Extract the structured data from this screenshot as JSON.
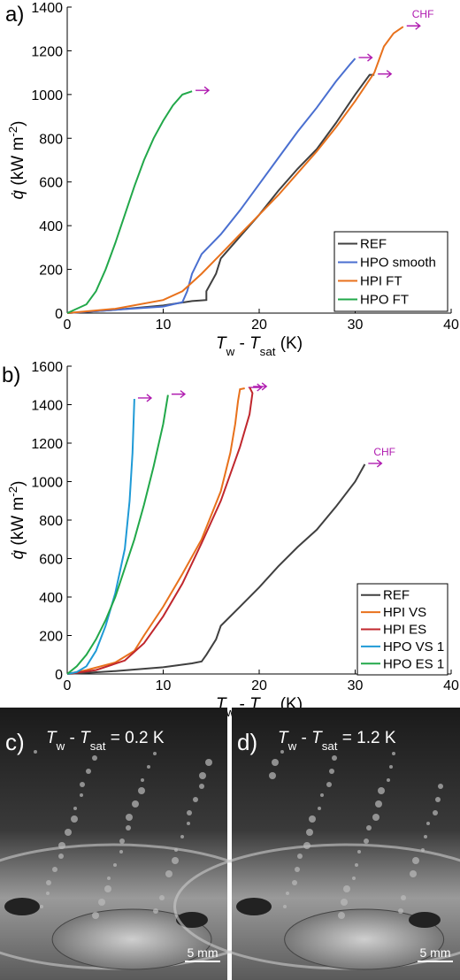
{
  "chart_data": [
    {
      "type": "line",
      "panel": "a)",
      "annotation": "CHF",
      "xlabel": [
        "T",
        "w",
        " - ",
        "T",
        "sat",
        " (K)"
      ],
      "ylabel": [
        "q̇",
        " (kW m",
        "-2",
        ")"
      ],
      "xlim": [
        0,
        40
      ],
      "xticks": [
        0,
        10,
        20,
        30,
        40
      ],
      "ylim": [
        0,
        1400
      ],
      "yticks": [
        0,
        200,
        400,
        600,
        800,
        1000,
        1200,
        1400
      ],
      "grid": false,
      "legend": "lower right",
      "series": [
        {
          "name": "REF",
          "color": "#404040",
          "x": [
            0,
            5,
            10,
            13,
            14.5,
            14.5,
            15.5,
            16,
            18,
            20,
            22,
            24,
            26,
            28,
            30,
            31.5,
            32
          ],
          "values": [
            0,
            15,
            35,
            55,
            60,
            100,
            180,
            250,
            350,
            450,
            560,
            660,
            750,
            870,
            1000,
            1090,
            1090
          ]
        },
        {
          "name": "HPO smooth",
          "color": "#4a6fd0",
          "x": [
            0,
            5,
            10,
            12,
            12.5,
            13,
            14,
            16,
            18,
            20,
            22,
            24,
            26,
            28,
            29.5,
            30
          ],
          "values": [
            0,
            15,
            30,
            50,
            100,
            180,
            270,
            360,
            470,
            590,
            710,
            830,
            940,
            1060,
            1140,
            1165
          ]
        },
        {
          "name": "HPI FT",
          "color": "#e8711c",
          "x": [
            0,
            5,
            10,
            12,
            14,
            16,
            18,
            20,
            22,
            24,
            26,
            28,
            30,
            32,
            33,
            34,
            35
          ],
          "values": [
            0,
            20,
            60,
            100,
            180,
            270,
            360,
            450,
            540,
            640,
            740,
            850,
            970,
            1100,
            1220,
            1280,
            1310
          ]
        },
        {
          "name": "HPO FT",
          "color": "#22a84a",
          "x": [
            0,
            2,
            3,
            4,
            5,
            6,
            7,
            8,
            9,
            10,
            11,
            12,
            13
          ],
          "values": [
            0,
            40,
            100,
            200,
            320,
            450,
            580,
            700,
            800,
            880,
            950,
            1000,
            1015
          ]
        }
      ]
    },
    {
      "type": "line",
      "panel": "b)",
      "annotation": "CHF",
      "xlabel": [
        "T",
        "w",
        " - ",
        "T",
        "sat",
        " (K)"
      ],
      "ylabel": [
        "q̇",
        " (kW m",
        "-2",
        ")"
      ],
      "xlim": [
        0,
        40
      ],
      "xticks": [
        0,
        10,
        20,
        30,
        40
      ],
      "ylim": [
        0,
        1600
      ],
      "yticks": [
        0,
        200,
        400,
        600,
        800,
        1000,
        1200,
        1400,
        1600
      ],
      "grid": false,
      "legend": "lower right",
      "series": [
        {
          "name": "REF",
          "color": "#404040",
          "x": [
            0,
            5,
            10,
            13,
            14,
            14.5,
            15.5,
            16,
            18,
            20,
            22,
            24,
            26,
            28,
            30,
            31
          ],
          "values": [
            0,
            15,
            35,
            55,
            65,
            100,
            180,
            250,
            350,
            450,
            560,
            660,
            750,
            870,
            1000,
            1090
          ]
        },
        {
          "name": "HPI VS",
          "color": "#e8711c",
          "x": [
            0,
            2,
            5,
            7,
            8,
            10,
            12,
            14,
            16,
            17,
            17.5,
            17.8,
            18,
            18.5
          ],
          "values": [
            0,
            20,
            60,
            120,
            200,
            350,
            520,
            700,
            950,
            1150,
            1300,
            1420,
            1480,
            1485
          ]
        },
        {
          "name": "HPI ES",
          "color": "#c0272d",
          "x": [
            0,
            3,
            6,
            8,
            10,
            12,
            14,
            16,
            18,
            19,
            19.3,
            19
          ],
          "values": [
            0,
            20,
            70,
            160,
            300,
            470,
            680,
            900,
            1180,
            1350,
            1460,
            1490
          ]
        },
        {
          "name": "HPO VS 1",
          "color": "#1f9ad6",
          "x": [
            0,
            1,
            2,
            3,
            4,
            5,
            6,
            6.5,
            6.8,
            7
          ],
          "values": [
            0,
            10,
            40,
            120,
            250,
            420,
            650,
            900,
            1150,
            1430
          ]
        },
        {
          "name": "HPO ES 1",
          "color": "#22a84a",
          "x": [
            0,
            1,
            2,
            3,
            4,
            5,
            6,
            7,
            8,
            9,
            10,
            10.5
          ],
          "values": [
            0,
            40,
            100,
            180,
            280,
            400,
            550,
            700,
            880,
            1080,
            1300,
            1450
          ]
        }
      ]
    }
  ],
  "photos": [
    {
      "label": "c)",
      "caption": [
        "T",
        "w",
        " - ",
        "T",
        "sat",
        " = 0.2 K"
      ],
      "scale": "5 mm"
    },
    {
      "label": "d)",
      "caption": [
        "T",
        "w",
        " - ",
        "T",
        "sat",
        " = 1.2 K"
      ],
      "scale": "5 mm"
    }
  ]
}
